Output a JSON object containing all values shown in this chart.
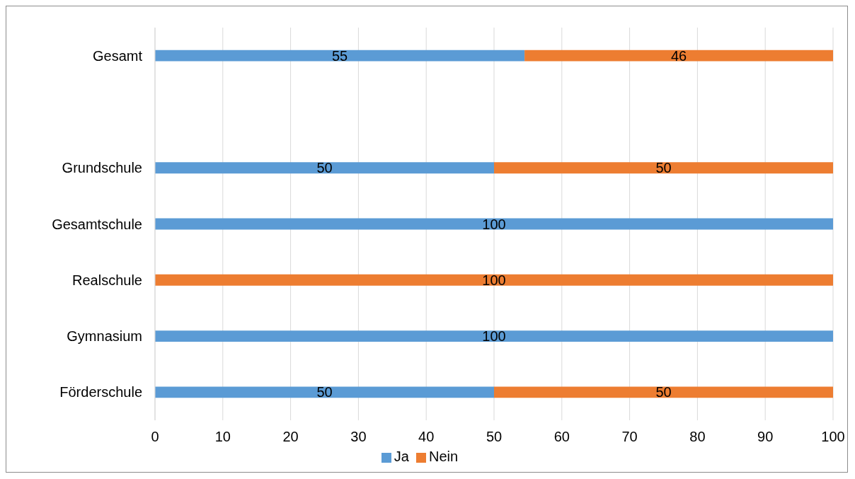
{
  "chart_data": {
    "type": "bar",
    "orientation": "horizontal",
    "stacked": true,
    "categories": [
      "Gesamt",
      null,
      "Grundschule",
      "Gesamtschule",
      "Realschule",
      "Gymnasium",
      "Förderschule"
    ],
    "series": [
      {
        "name": "Ja",
        "color": "#5b9bd5",
        "values": [
          54.5,
          null,
          50,
          100,
          0,
          100,
          50
        ],
        "value_labels": [
          "55",
          null,
          "50",
          "100",
          null,
          "100",
          "50"
        ]
      },
      {
        "name": "Nein",
        "color": "#ed7d31",
        "values": [
          45.5,
          null,
          50,
          0,
          100,
          0,
          50
        ],
        "value_labels": [
          "46",
          null,
          "50",
          null,
          "100",
          null,
          "50"
        ]
      }
    ],
    "xlim": [
      0,
      100
    ],
    "xticks": [
      0,
      10,
      20,
      30,
      40,
      50,
      60,
      70,
      80,
      90,
      100
    ],
    "grid": "x",
    "legend": "bottom"
  }
}
